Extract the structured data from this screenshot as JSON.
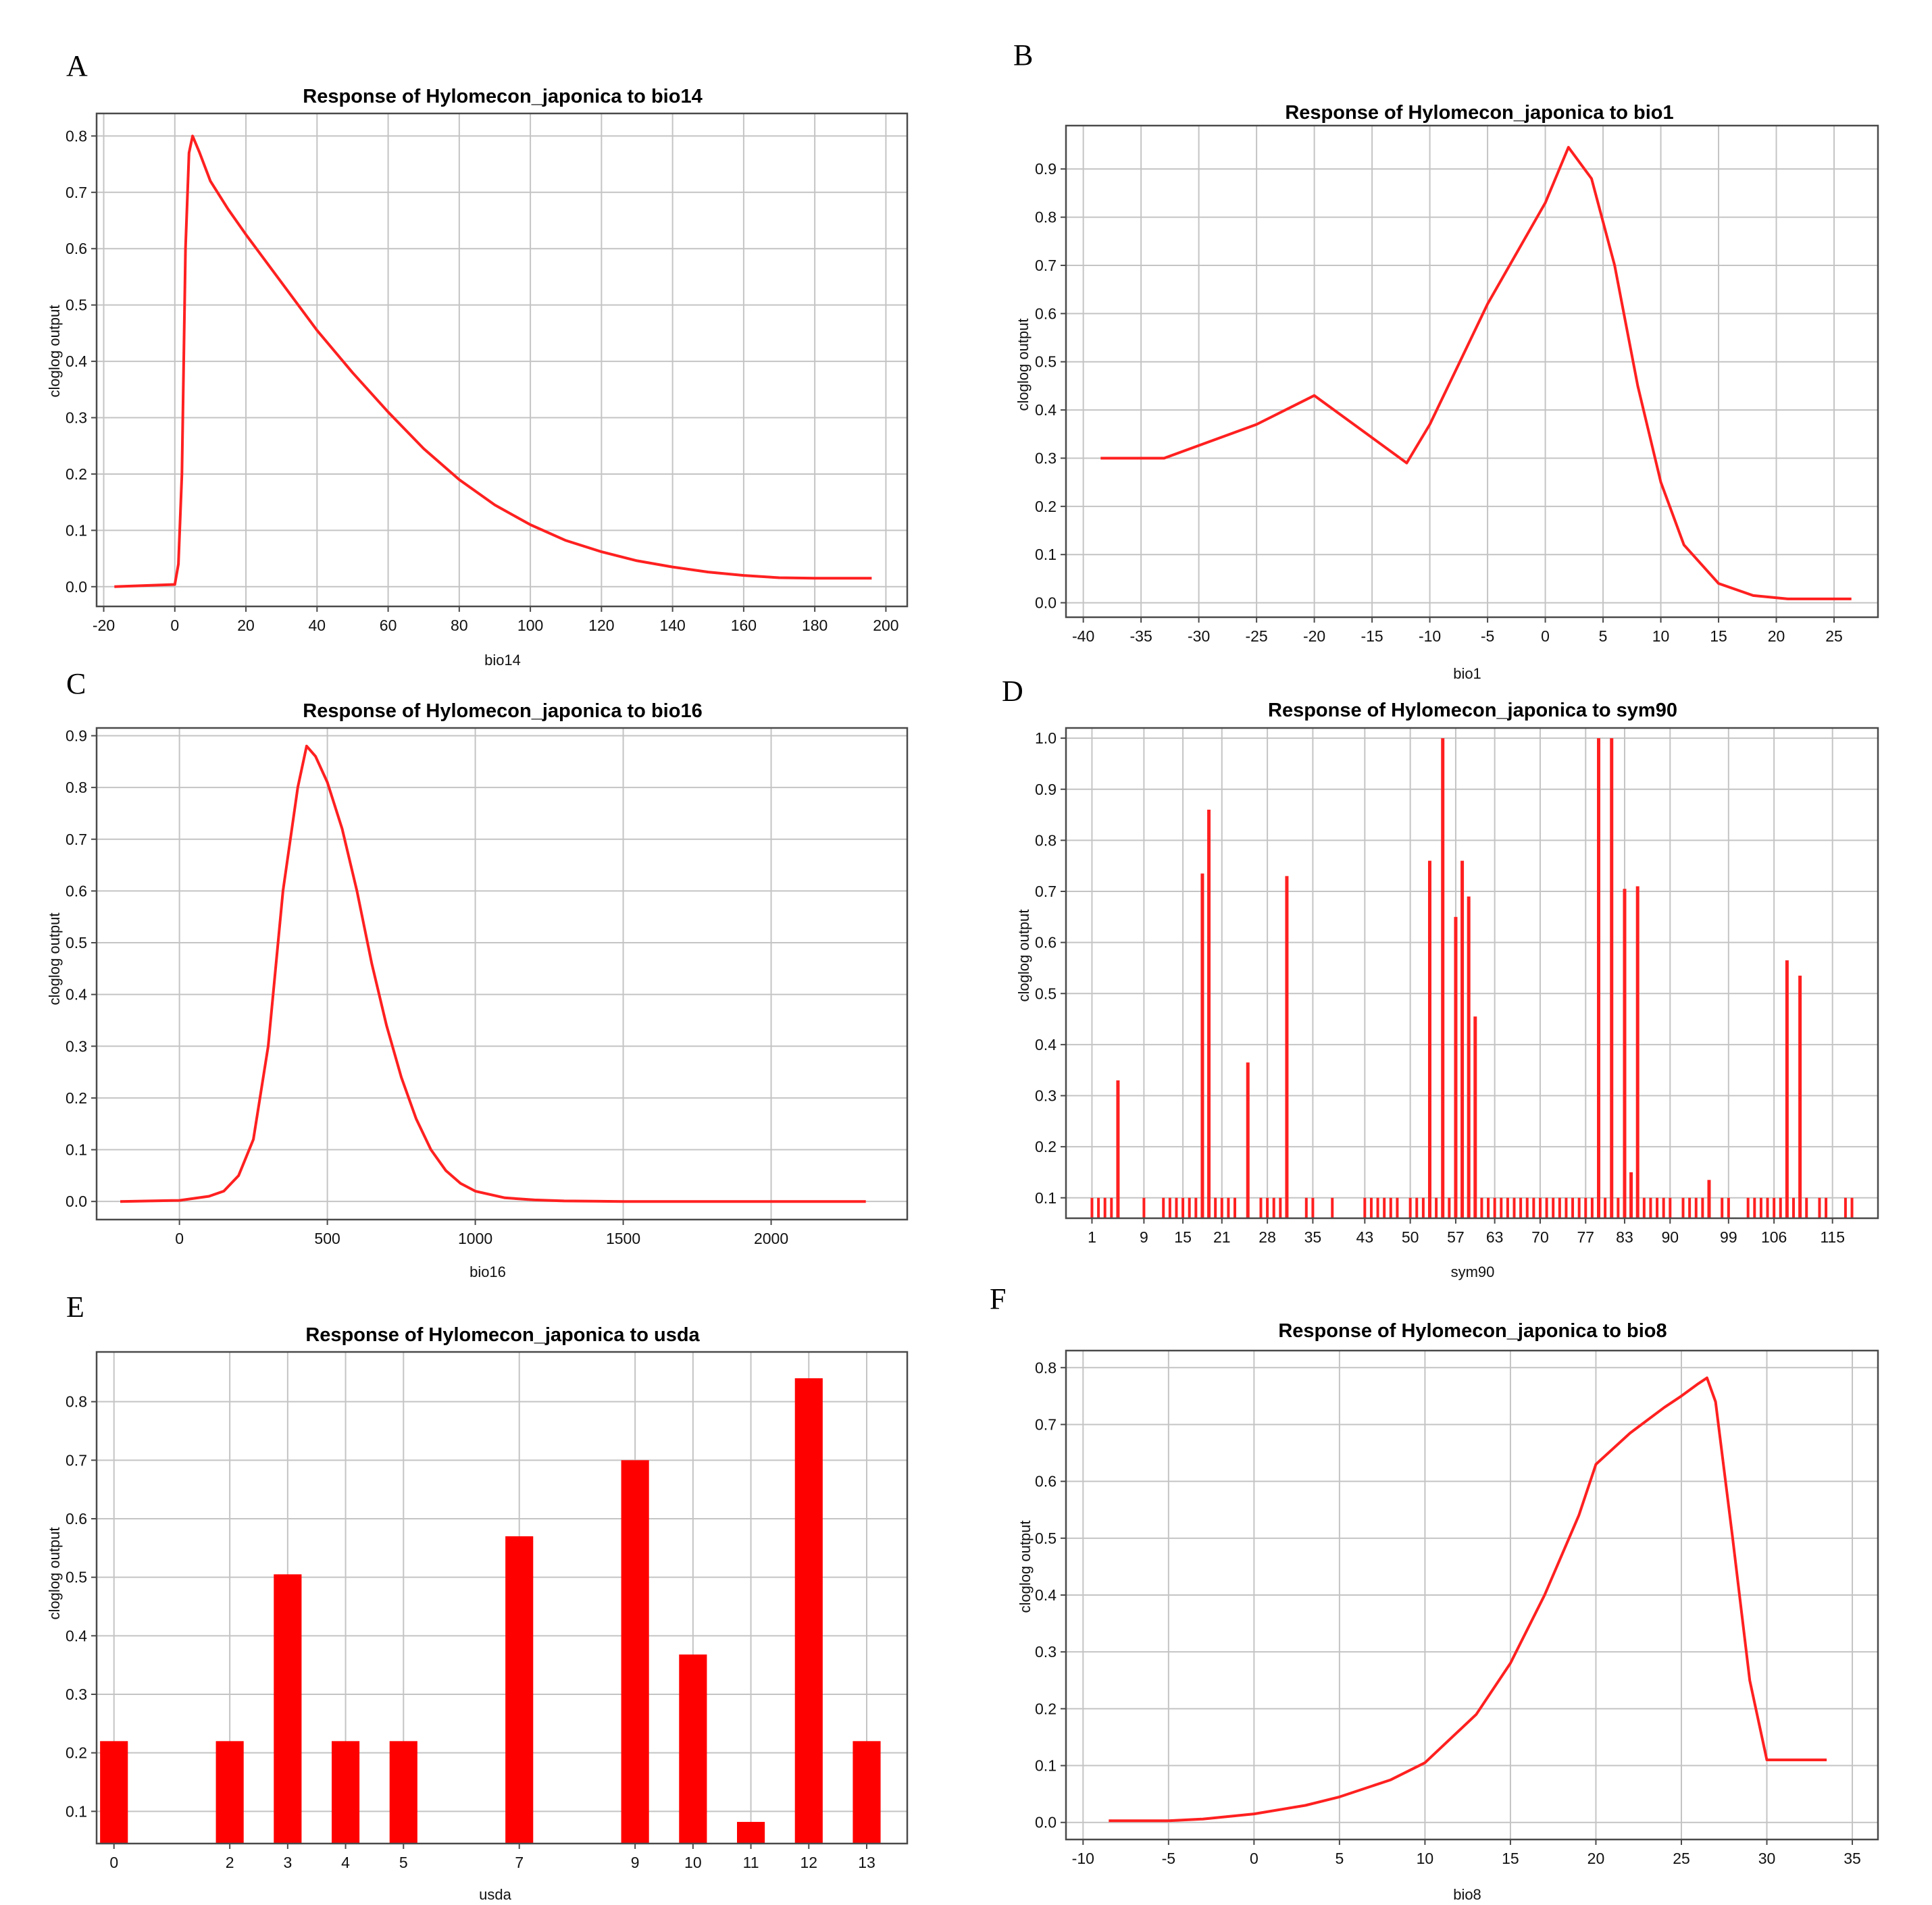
{
  "chart_data": [
    {
      "panel": "A",
      "type": "line",
      "title": "Response of Hylomecon_japonica to bio14",
      "xlabel": "bio14",
      "ylabel": "cloglog output",
      "xlim": [
        -22,
        206
      ],
      "ylim": [
        -0.035,
        0.84
      ],
      "xticks": [
        -20,
        0,
        20,
        40,
        60,
        80,
        100,
        120,
        140,
        160,
        180,
        200
      ],
      "yticks": [
        0.0,
        0.1,
        0.2,
        0.3,
        0.4,
        0.5,
        0.6,
        0.7,
        0.8
      ],
      "x": [
        -17,
        0,
        1,
        2,
        3,
        4,
        5,
        7,
        10,
        15,
        20,
        30,
        40,
        50,
        60,
        70,
        80,
        90,
        100,
        110,
        120,
        130,
        140,
        150,
        160,
        170,
        180,
        190,
        196
      ],
      "y": [
        0.0,
        0.004,
        0.04,
        0.2,
        0.6,
        0.77,
        0.8,
        0.77,
        0.72,
        0.67,
        0.625,
        0.54,
        0.455,
        0.38,
        0.31,
        0.245,
        0.19,
        0.145,
        0.11,
        0.082,
        0.062,
        0.046,
        0.035,
        0.026,
        0.02,
        0.016,
        0.015,
        0.015,
        0.015
      ],
      "series_color": "#ff2020"
    },
    {
      "panel": "B",
      "type": "line",
      "title": "Response of Hylomecon_japonica to bio1",
      "xlabel": "bio1",
      "ylabel": "cloglog output",
      "xlim": [
        -41.5,
        28.8
      ],
      "ylim": [
        -0.03,
        0.99
      ],
      "xticks": [
        -40,
        -35,
        -30,
        -25,
        -20,
        -15,
        -10,
        -5,
        0,
        5,
        10,
        15,
        20,
        25
      ],
      "yticks": [
        0.0,
        0.1,
        0.2,
        0.3,
        0.4,
        0.5,
        0.6,
        0.7,
        0.8,
        0.9
      ],
      "x": [
        -38.5,
        -33,
        -25,
        -20,
        -12,
        -10,
        -7,
        -5,
        0,
        2,
        4,
        6,
        8,
        10,
        12,
        15,
        18,
        21,
        24,
        26.5
      ],
      "y": [
        0.3,
        0.3,
        0.37,
        0.43,
        0.29,
        0.37,
        0.52,
        0.62,
        0.83,
        0.945,
        0.88,
        0.7,
        0.45,
        0.25,
        0.12,
        0.04,
        0.015,
        0.008,
        0.008,
        0.008
      ],
      "series_color": "#ff2020"
    },
    {
      "panel": "C",
      "type": "line",
      "title": "Response of Hylomecon_japonica to bio16",
      "xlabel": "bio16",
      "ylabel": "cloglog output",
      "xlim": [
        -280,
        2460
      ],
      "ylim": [
        -0.035,
        0.915
      ],
      "xticks": [
        0,
        500,
        1000,
        1500,
        2000
      ],
      "xtick_labels": [
        "0",
        "500",
        "1000",
        "1500",
        "2000"
      ],
      "yticks": [
        0.0,
        0.1,
        0.2,
        0.3,
        0.4,
        0.5,
        0.6,
        0.7,
        0.8,
        0.9
      ],
      "x": [
        -200,
        0,
        100,
        150,
        200,
        250,
        300,
        350,
        400,
        430,
        460,
        500,
        550,
        600,
        650,
        700,
        750,
        800,
        850,
        900,
        950,
        1000,
        1100,
        1200,
        1300,
        1500,
        2000,
        2320
      ],
      "y": [
        0.0,
        0.002,
        0.01,
        0.02,
        0.05,
        0.12,
        0.3,
        0.6,
        0.8,
        0.88,
        0.86,
        0.81,
        0.72,
        0.6,
        0.46,
        0.34,
        0.24,
        0.16,
        0.1,
        0.06,
        0.035,
        0.02,
        0.007,
        0.003,
        0.001,
        0.0,
        0.0,
        0.0
      ],
      "series_color": "#ff2020"
    },
    {
      "panel": "D",
      "type": "bar",
      "title": "Response of Hylomecon_japonica to sym90",
      "xlabel": "sym90",
      "ylabel": "cloglog output",
      "xlim": [
        -3,
        122
      ],
      "ylim": [
        0.06,
        1.02
      ],
      "xticks": [
        1,
        9,
        15,
        21,
        28,
        35,
        43,
        50,
        57,
        63,
        70,
        77,
        83,
        90,
        99,
        106,
        115
      ],
      "yticks": [
        0.1,
        0.2,
        0.3,
        0.4,
        0.5,
        0.6,
        0.7,
        0.8,
        0.9,
        1.0
      ],
      "bar_floor": 0.06,
      "tall_bars": [
        {
          "x": 5,
          "value": 0.33
        },
        {
          "x": 18,
          "value": 0.735
        },
        {
          "x": 19,
          "value": 0.86
        },
        {
          "x": 25,
          "value": 0.365
        },
        {
          "x": 31,
          "value": 0.73
        },
        {
          "x": 53,
          "value": 0.76
        },
        {
          "x": 55,
          "value": 1.0
        },
        {
          "x": 57,
          "value": 0.65
        },
        {
          "x": 58,
          "value": 0.76
        },
        {
          "x": 59,
          "value": 0.69
        },
        {
          "x": 60,
          "value": 0.455
        },
        {
          "x": 79,
          "value": 1.0
        },
        {
          "x": 81,
          "value": 1.0
        },
        {
          "x": 83,
          "value": 0.705
        },
        {
          "x": 84,
          "value": 0.15
        },
        {
          "x": 85,
          "value": 0.71
        },
        {
          "x": 96,
          "value": 0.135
        },
        {
          "x": 108,
          "value": 0.565
        },
        {
          "x": 110,
          "value": 0.535
        }
      ],
      "low_bars": {
        "value": 0.1,
        "x": [
          1,
          2,
          3,
          4,
          9,
          12,
          13,
          14,
          15,
          16,
          17,
          18,
          20,
          21,
          22,
          23,
          27,
          28,
          29,
          30,
          34,
          35,
          38,
          43,
          44,
          45,
          46,
          47,
          48,
          50,
          51,
          52,
          54,
          56,
          61,
          62,
          63,
          64,
          65,
          66,
          67,
          68,
          69,
          70,
          71,
          72,
          73,
          74,
          75,
          76,
          77,
          78,
          80,
          82,
          86,
          87,
          88,
          89,
          90,
          92,
          93,
          94,
          95,
          98,
          99,
          102,
          103,
          104,
          105,
          106,
          107,
          109,
          111,
          113,
          114,
          117,
          118
        ]
      },
      "series_color": "#ff2020"
    },
    {
      "panel": "E",
      "type": "bar",
      "title": "Response of Hylomecon_japonica to usda",
      "xlabel": "usda",
      "ylabel": "cloglog output",
      "xlim": [
        -0.3,
        13.7
      ],
      "ylim": [
        0.045,
        0.885
      ],
      "yticks": [
        0.1,
        0.2,
        0.3,
        0.4,
        0.5,
        0.6,
        0.7,
        0.8
      ],
      "bar_floor": 0.045,
      "categories": [
        "0",
        "2",
        "3",
        "4",
        "5",
        "7",
        "9",
        "10",
        "11",
        "12",
        "13"
      ],
      "x": [
        0,
        2,
        3,
        4,
        5,
        7,
        9,
        10,
        11,
        12,
        13
      ],
      "values": [
        0.22,
        0.22,
        0.505,
        0.22,
        0.22,
        0.57,
        0.7,
        0.368,
        0.082,
        0.84,
        0.22
      ],
      "series_color": "#ff0000"
    },
    {
      "panel": "F",
      "type": "line",
      "title": "Response of Hylomecon_japonica to bio8",
      "xlabel": "bio8",
      "ylabel": "cloglog output",
      "xlim": [
        -11,
        36.5
      ],
      "ylim": [
        -0.03,
        0.83
      ],
      "xticks": [
        -10,
        -5,
        0,
        5,
        10,
        15,
        20,
        25,
        30,
        35
      ],
      "yticks": [
        0.0,
        0.1,
        0.2,
        0.3,
        0.4,
        0.5,
        0.6,
        0.7,
        0.8
      ],
      "x": [
        -8.5,
        -5,
        -3,
        0,
        3,
        5,
        8,
        10,
        13,
        15,
        17,
        19,
        20,
        22,
        24,
        25,
        26,
        26.5,
        27,
        28,
        29,
        30,
        31,
        33.5
      ],
      "y": [
        0.003,
        0.003,
        0.006,
        0.015,
        0.03,
        0.045,
        0.075,
        0.105,
        0.19,
        0.28,
        0.4,
        0.54,
        0.63,
        0.685,
        0.73,
        0.75,
        0.772,
        0.782,
        0.74,
        0.5,
        0.25,
        0.11,
        0.11,
        0.11
      ],
      "series_color": "#ff2020"
    }
  ]
}
